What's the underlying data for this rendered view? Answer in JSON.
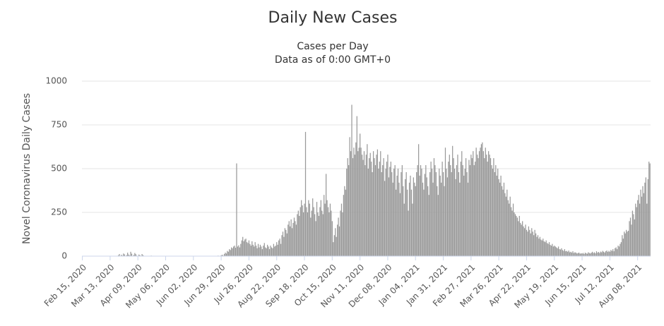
{
  "chart_data": {
    "type": "bar",
    "title": "Daily New Cases",
    "subtitle": [
      "Cases per Day",
      "Data as of 0:00 GMT+0"
    ],
    "y_label": "Novel Coronavirus Daily Cases",
    "color": "#999999",
    "grid": true,
    "ylim": [
      0,
      1000
    ],
    "yticks": [
      0,
      250,
      500,
      750,
      1000
    ],
    "categories": [
      "Feb 15, 2020",
      null,
      null,
      null,
      null,
      null,
      null,
      null,
      null,
      null,
      null,
      null,
      null,
      null,
      null,
      null,
      null,
      null,
      null,
      null,
      null,
      null,
      null,
      null,
      null,
      null,
      null,
      "Mar 13, 2020",
      null,
      null,
      null,
      null,
      null,
      null,
      null,
      null,
      null,
      null,
      null,
      null,
      null,
      null,
      null,
      null,
      null,
      null,
      null,
      null,
      null,
      null,
      null,
      null,
      null,
      null,
      "Apr 09, 2020",
      null,
      null,
      null,
      null,
      null,
      null,
      null,
      null,
      null,
      null,
      null,
      null,
      null,
      null,
      null,
      null,
      null,
      null,
      null,
      null,
      null,
      null,
      null,
      null,
      null,
      null,
      "May 06, 2020",
      null,
      null,
      null,
      null,
      null,
      null,
      null,
      null,
      null,
      null,
      null,
      null,
      null,
      null,
      null,
      null,
      null,
      null,
      null,
      null,
      null,
      null,
      null,
      null,
      null,
      null,
      "Jun 02, 2020",
      null,
      null,
      null,
      null,
      null,
      null,
      null,
      null,
      null,
      null,
      null,
      null,
      null,
      null,
      null,
      null,
      null,
      null,
      null,
      null,
      null,
      null,
      null,
      null,
      null,
      null,
      "Jun 29, 2020",
      null,
      null,
      null,
      null,
      null,
      null,
      null,
      null,
      null,
      null,
      null,
      null,
      null,
      null,
      null,
      null,
      null,
      null,
      null,
      null,
      null,
      null,
      null,
      null,
      null,
      null,
      "Jul 26, 2020",
      null,
      null,
      null,
      null,
      null,
      null,
      null,
      null,
      null,
      null,
      null,
      null,
      null,
      null,
      null,
      null,
      null,
      null,
      null,
      null,
      null,
      null,
      null,
      null,
      null,
      null,
      "Aug 22, 2020",
      null,
      null,
      null,
      null,
      null,
      null,
      null,
      null,
      null,
      null,
      null,
      null,
      null,
      null,
      null,
      null,
      null,
      null,
      null,
      null,
      null,
      null,
      null,
      null,
      null,
      null,
      "Sep 18, 2020",
      null,
      null,
      null,
      null,
      null,
      null,
      null,
      null,
      null,
      null,
      null,
      null,
      null,
      null,
      null,
      null,
      null,
      null,
      null,
      null,
      null,
      null,
      null,
      null,
      null,
      null,
      "Oct 15, 2020",
      null,
      null,
      null,
      null,
      null,
      null,
      null,
      null,
      null,
      null,
      null,
      null,
      null,
      null,
      null,
      null,
      null,
      null,
      null,
      null,
      null,
      null,
      null,
      null,
      null,
      null,
      "Nov 11, 2020",
      null,
      null,
      null,
      null,
      null,
      null,
      null,
      null,
      null,
      null,
      null,
      null,
      null,
      null,
      null,
      null,
      null,
      null,
      null,
      null,
      null,
      null,
      null,
      null,
      null,
      null,
      "Dec 08, 2020",
      null,
      null,
      null,
      null,
      null,
      null,
      null,
      null,
      null,
      null,
      null,
      null,
      null,
      null,
      null,
      null,
      null,
      null,
      null,
      null,
      null,
      null,
      null,
      null,
      null,
      null,
      "Jan 04, 2021",
      null,
      null,
      null,
      null,
      null,
      null,
      null,
      null,
      null,
      null,
      null,
      null,
      null,
      null,
      null,
      null,
      null,
      null,
      null,
      null,
      null,
      null,
      null,
      null,
      null,
      null,
      "Jan 31, 2021",
      null,
      null,
      null,
      null,
      null,
      null,
      null,
      null,
      null,
      null,
      null,
      null,
      null,
      null,
      null,
      null,
      null,
      null,
      null,
      null,
      null,
      null,
      null,
      null,
      null,
      null,
      "Feb 27, 2021",
      null,
      null,
      null,
      null,
      null,
      null,
      null,
      null,
      null,
      null,
      null,
      null,
      null,
      null,
      null,
      null,
      null,
      null,
      null,
      null,
      null,
      null,
      null,
      null,
      null,
      null,
      "Mar 26, 2021",
      null,
      null,
      null,
      null,
      null,
      null,
      null,
      null,
      null,
      null,
      null,
      null,
      null,
      null,
      null,
      null,
      null,
      null,
      null,
      null,
      null,
      null,
      null,
      null,
      null,
      null,
      "Apr 22, 2021",
      null,
      null,
      null,
      null,
      null,
      null,
      null,
      null,
      null,
      null,
      null,
      null,
      null,
      null,
      null,
      null,
      null,
      null,
      null,
      null,
      null,
      null,
      null,
      null,
      null,
      null,
      "May 19, 2021",
      null,
      null,
      null,
      null,
      null,
      null,
      null,
      null,
      null,
      null,
      null,
      null,
      null,
      null,
      null,
      null,
      null,
      null,
      null,
      null,
      null,
      null,
      null,
      null,
      null,
      null,
      "Jun 15, 2021",
      null,
      null,
      null,
      null,
      null,
      null,
      null,
      null,
      null,
      null,
      null,
      null,
      null,
      null,
      null,
      null,
      null,
      null,
      null,
      null,
      null,
      null,
      null,
      null,
      null,
      null,
      "Jul 12, 2021",
      null,
      null,
      null,
      null,
      null,
      null,
      null,
      null,
      null,
      null,
      null,
      null,
      null,
      null,
      null,
      null,
      null,
      null,
      null,
      null,
      null,
      null,
      null,
      null,
      null,
      null,
      "Aug 08, 2021",
      null,
      null,
      null,
      null,
      null,
      null,
      null,
      null,
      null,
      null,
      null,
      null
    ],
    "values": [
      0,
      0,
      0,
      0,
      0,
      0,
      0,
      0,
      0,
      0,
      0,
      0,
      0,
      0,
      0,
      0,
      0,
      0,
      0,
      0,
      0,
      0,
      0,
      0,
      0,
      0,
      0,
      0,
      0,
      0,
      0,
      0,
      0,
      0,
      0,
      5,
      12,
      0,
      8,
      3,
      15,
      10,
      0,
      6,
      20,
      9,
      4,
      25,
      14,
      0,
      7,
      18,
      11,
      3,
      0,
      9,
      5,
      2,
      12,
      6,
      0,
      1,
      0,
      2,
      0,
      0,
      1,
      3,
      0,
      0,
      2,
      1,
      0,
      0,
      1,
      0,
      2,
      0,
      0,
      1,
      0,
      0,
      1,
      0,
      0,
      2,
      0,
      0,
      0,
      1,
      0,
      0,
      0,
      1,
      0,
      0,
      0,
      0,
      1,
      0,
      0,
      0,
      0,
      0,
      1,
      0,
      0,
      0,
      0,
      0,
      1,
      0,
      0,
      0,
      0,
      0,
      0,
      1,
      0,
      0,
      0,
      0,
      1,
      0,
      0,
      0,
      0,
      2,
      0,
      1,
      2,
      0,
      3,
      1,
      0,
      5,
      8,
      3,
      12,
      20,
      15,
      30,
      25,
      40,
      35,
      50,
      45,
      55,
      60,
      48,
      530,
      55,
      62,
      50,
      70,
      90,
      110,
      85,
      95,
      100,
      80,
      75,
      90,
      70,
      60,
      85,
      65,
      55,
      80,
      60,
      45,
      70,
      50,
      65,
      55,
      40,
      60,
      75,
      50,
      45,
      65,
      55,
      40,
      60,
      50,
      45,
      70,
      55,
      60,
      80,
      65,
      90,
      100,
      70,
      120,
      140,
      110,
      160,
      150,
      130,
      180,
      200,
      170,
      210,
      160,
      190,
      220,
      200,
      180,
      240,
      260,
      230,
      280,
      320,
      290,
      250,
      300,
      710,
      280,
      250,
      320,
      300,
      220,
      260,
      330,
      280,
      240,
      200,
      310,
      250,
      230,
      280,
      320,
      260,
      240,
      350,
      300,
      470,
      320,
      280,
      250,
      300,
      260,
      200,
      80,
      120,
      160,
      110,
      180,
      220,
      170,
      260,
      300,
      250,
      350,
      400,
      380,
      500,
      560,
      520,
      680,
      600,
      865,
      560,
      620,
      580,
      650,
      800,
      600,
      620,
      700,
      620,
      580,
      550,
      600,
      520,
      580,
      640,
      500,
      560,
      590,
      540,
      480,
      600,
      560,
      520,
      580,
      610,
      500,
      540,
      600,
      480,
      520,
      560,
      430,
      500,
      540,
      580,
      450,
      510,
      540,
      480,
      420,
      500,
      520,
      380,
      460,
      500,
      420,
      360,
      480,
      520,
      400,
      300,
      440,
      480,
      380,
      260,
      420,
      460,
      380,
      300,
      450,
      420,
      400,
      480,
      520,
      640,
      460,
      520,
      500,
      420,
      380,
      470,
      520,
      450,
      400,
      350,
      480,
      540,
      500,
      420,
      560,
      520,
      480,
      400,
      350,
      500,
      460,
      420,
      540,
      480,
      400,
      620,
      500,
      450,
      540,
      580,
      520,
      480,
      630,
      560,
      500,
      440,
      520,
      580,
      480,
      420,
      540,
      600,
      520,
      460,
      500,
      560,
      480,
      420,
      550,
      520,
      580,
      560,
      600,
      520,
      540,
      620,
      580,
      560,
      600,
      620,
      640,
      650,
      600,
      560,
      620,
      580,
      540,
      600,
      580,
      560,
      520,
      500,
      560,
      480,
      520,
      460,
      500,
      440,
      420,
      460,
      400,
      380,
      420,
      360,
      340,
      380,
      320,
      300,
      340,
      280,
      260,
      300,
      250,
      240,
      230,
      220,
      200,
      230,
      190,
      180,
      200,
      170,
      160,
      180,
      150,
      140,
      170,
      150,
      130,
      160,
      140,
      120,
      150,
      130,
      110,
      120,
      100,
      110,
      95,
      90,
      100,
      85,
      80,
      90,
      75,
      70,
      80,
      65,
      60,
      70,
      55,
      60,
      55,
      50,
      45,
      55,
      40,
      38,
      45,
      35,
      30,
      40,
      28,
      30,
      25,
      32,
      22,
      25,
      20,
      28,
      18,
      22,
      20,
      15,
      18,
      20,
      14,
      16,
      15,
      18,
      12,
      20,
      16,
      14,
      22,
      18,
      15,
      20,
      25,
      18,
      22,
      16,
      28,
      20,
      24,
      18,
      26,
      22,
      30,
      25,
      20,
      28,
      32,
      24,
      30,
      25,
      35,
      30,
      40,
      28,
      45,
      50,
      40,
      60,
      55,
      70,
      80,
      120,
      100,
      140,
      130,
      150,
      140,
      145,
      200,
      220,
      180,
      260,
      240,
      210,
      300,
      280,
      320,
      350,
      300,
      380,
      340,
      400,
      360,
      420,
      450,
      300,
      440,
      540,
      530
    ]
  }
}
